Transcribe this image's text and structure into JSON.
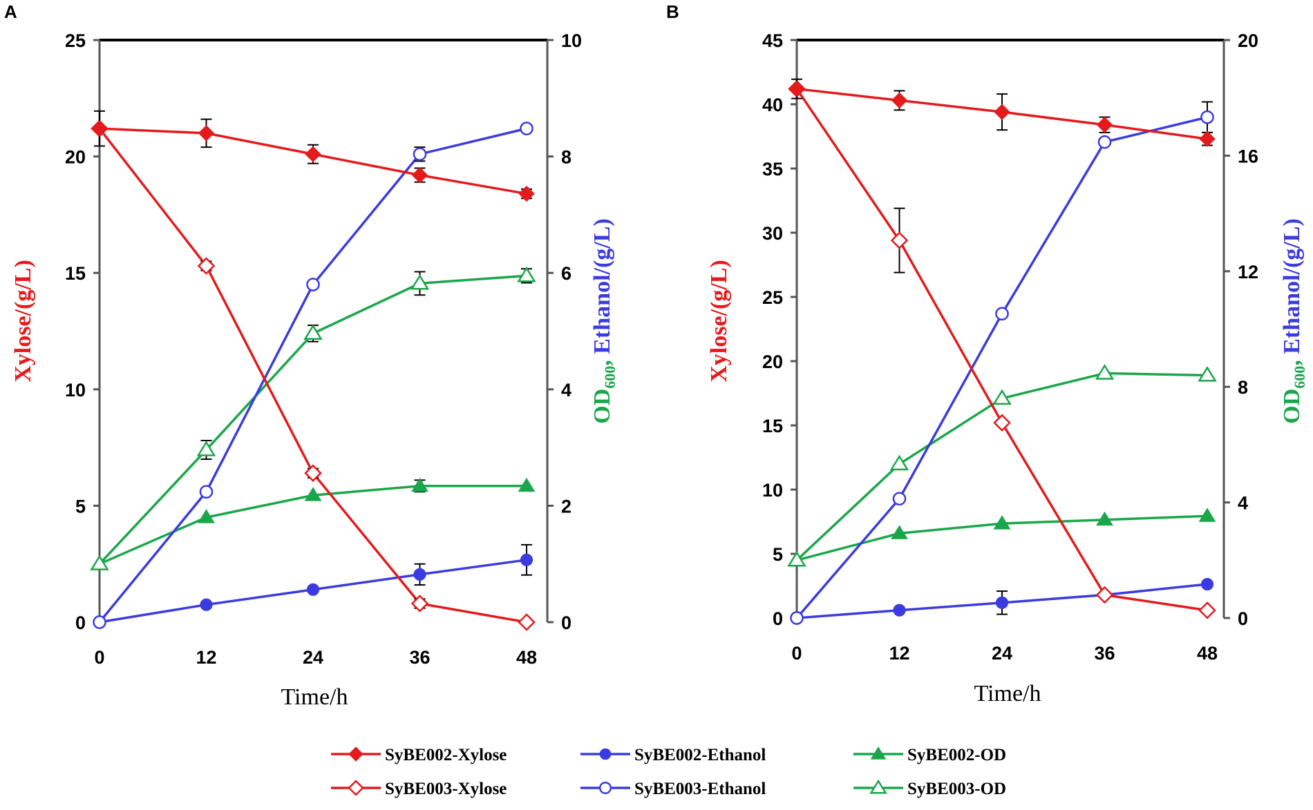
{
  "chart_data": [
    {
      "panel": "A",
      "type": "line",
      "x": [
        0,
        12,
        24,
        36,
        48
      ],
      "xlabel": "Time/h",
      "ylabel_left": "Xylose/(g/L)",
      "ylabel_right_parts": [
        "OD",
        "600",
        ", ",
        "Ethanol/(g/L)"
      ],
      "ylim_left": [
        0,
        25
      ],
      "ylim_right": [
        0,
        10
      ],
      "yticks_left": [
        0,
        5,
        10,
        15,
        20,
        25
      ],
      "yticks_right": [
        0,
        2,
        4,
        6,
        8,
        10
      ],
      "series": [
        {
          "name": "SyBE002-Xylose",
          "axis": "left",
          "values": [
            21.2,
            21.0,
            20.1,
            19.2,
            18.4
          ],
          "err": [
            0.75,
            0.6,
            0.4,
            0.3,
            0.2
          ]
        },
        {
          "name": "SyBE003-Xylose",
          "axis": "left",
          "values": [
            21.2,
            15.3,
            6.4,
            0.8,
            0.0
          ],
          "err": [
            0,
            0.2,
            0.2,
            0.2,
            0
          ]
        },
        {
          "name": "SyBE002-Ethanol",
          "axis": "right",
          "values": [
            0.0,
            0.3,
            0.56,
            0.82,
            1.07
          ],
          "err": [
            0,
            0,
            0,
            0.18,
            0.26
          ]
        },
        {
          "name": "SyBE003-Ethanol",
          "axis": "right",
          "values": [
            0.0,
            2.24,
            5.8,
            8.04,
            8.48
          ],
          "err": [
            0,
            0,
            0,
            0.12,
            0
          ]
        },
        {
          "name": "SyBE002-OD",
          "axis": "right",
          "values": [
            1.0,
            1.8,
            2.18,
            2.34,
            2.34
          ],
          "err": [
            0,
            0,
            0,
            0.1,
            0
          ]
        },
        {
          "name": "SyBE003-OD",
          "axis": "right",
          "values": [
            1.0,
            2.96,
            4.96,
            5.82,
            5.95
          ],
          "err": [
            0,
            0.16,
            0.14,
            0.2,
            0.12
          ]
        }
      ]
    },
    {
      "panel": "B",
      "type": "line",
      "x": [
        0,
        12,
        24,
        36,
        48
      ],
      "xlabel": "Time/h",
      "ylabel_left": "Xylose/(g/L)",
      "ylabel_right_parts": [
        "OD",
        "600",
        ", ",
        "Ethanol/(g/L)"
      ],
      "ylim_left": [
        0,
        45
      ],
      "ylim_right": [
        0,
        20
      ],
      "yticks_left": [
        0,
        5,
        10,
        15,
        20,
        25,
        30,
        35,
        40,
        45
      ],
      "yticks_right": [
        0,
        4,
        8,
        12,
        16,
        20
      ],
      "series": [
        {
          "name": "SyBE002-Xylose",
          "axis": "left",
          "values": [
            41.2,
            40.3,
            39.4,
            38.4,
            37.3
          ],
          "err": [
            0.75,
            0.75,
            1.4,
            0.6,
            0.5
          ]
        },
        {
          "name": "SyBE003-Xylose",
          "axis": "left",
          "values": [
            41.2,
            29.4,
            15.2,
            1.8,
            0.6
          ],
          "err": [
            0,
            2.5,
            0,
            0,
            0
          ]
        },
        {
          "name": "SyBE002-Ethanol",
          "axis": "right",
          "values": [
            0.0,
            0.27,
            0.53,
            0.8,
            1.17
          ],
          "err": [
            0,
            0,
            0.4,
            0,
            0
          ]
        },
        {
          "name": "SyBE003-Ethanol",
          "axis": "right",
          "values": [
            0.0,
            4.13,
            10.53,
            16.47,
            17.33
          ],
          "err": [
            0,
            0,
            0,
            0,
            0.53
          ]
        },
        {
          "name": "SyBE002-OD",
          "axis": "right",
          "values": [
            2.0,
            2.93,
            3.27,
            3.4,
            3.53
          ],
          "err": [
            0,
            0,
            0,
            0,
            0
          ]
        },
        {
          "name": "SyBE003-OD",
          "axis": "right",
          "values": [
            2.0,
            5.33,
            7.6,
            8.47,
            8.4
          ],
          "err": [
            0,
            0,
            0,
            0,
            0
          ]
        }
      ]
    }
  ],
  "legend": [
    {
      "name": "SyBE002-Xylose"
    },
    {
      "name": "SyBE002-Ethanol"
    },
    {
      "name": "SyBE002-OD"
    },
    {
      "name": "SyBE003-Xylose"
    },
    {
      "name": "SyBE003-Ethanol"
    },
    {
      "name": "SyBE003-OD"
    }
  ],
  "styles": {
    "SyBE002-Xylose": {
      "color": "#e41a1c",
      "marker": "diamond",
      "filled": true
    },
    "SyBE003-Xylose": {
      "color": "#e41a1c",
      "marker": "diamond",
      "filled": false
    },
    "SyBE002-Ethanol": {
      "color": "#3b3be0",
      "marker": "circle",
      "filled": true
    },
    "SyBE003-Ethanol": {
      "color": "#3b3be0",
      "marker": "circle",
      "filled": false
    },
    "SyBE002-OD": {
      "color": "#1aa64a",
      "marker": "triangle",
      "filled": true
    },
    "SyBE003-OD": {
      "color": "#1aa64a",
      "marker": "triangle",
      "filled": false
    }
  },
  "colors": {
    "xylose_label": "#e41a1c",
    "od_label": "#1aa64a",
    "ethanol_label": "#3b3be0",
    "axis": "#555555",
    "top_border": "#000000",
    "error_bar": "#000000"
  }
}
